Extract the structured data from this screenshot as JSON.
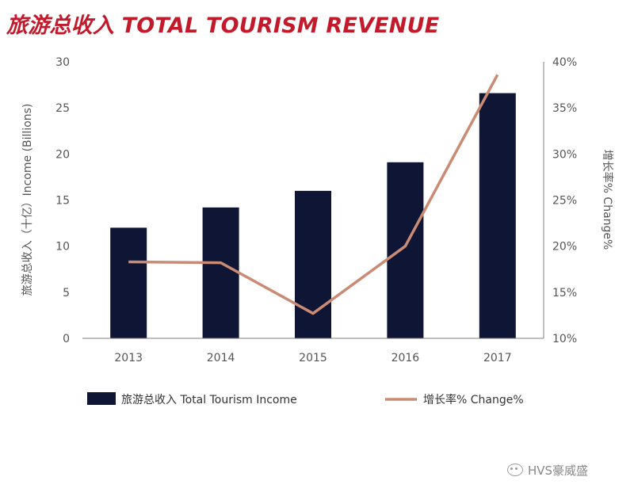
{
  "chart_data": {
    "type": "bar",
    "title": "旅游总收入 TOTAL TOURISM REVENUE",
    "categories": [
      "2013",
      "2014",
      "2015",
      "2016",
      "2017"
    ],
    "series": [
      {
        "name": "旅游总收入 Total Tourism Income",
        "type": "bar",
        "axis": "left",
        "values": [
          12.0,
          14.2,
          16.0,
          19.1,
          26.6
        ],
        "color": "#0f1535"
      },
      {
        "name": "增长率% Change%",
        "type": "line",
        "axis": "right",
        "values": [
          18.3,
          18.2,
          12.7,
          20.0,
          38.6
        ],
        "color": "#c98b73"
      }
    ],
    "ylabel": "旅游总收入（十亿）Income (Billions)",
    "y2label": "增长率% Change%",
    "ylim": [
      0,
      30
    ],
    "y2lim": [
      10,
      40
    ],
    "yticks": [
      "0",
      "5",
      "10",
      "15",
      "20",
      "25",
      "30"
    ],
    "y2ticks": [
      "10%",
      "15%",
      "20%",
      "25%",
      "30%",
      "35%",
      "40%"
    ],
    "grid": false,
    "legend_position": "bottom"
  },
  "watermark": {
    "text": "HVS豪威盛"
  }
}
